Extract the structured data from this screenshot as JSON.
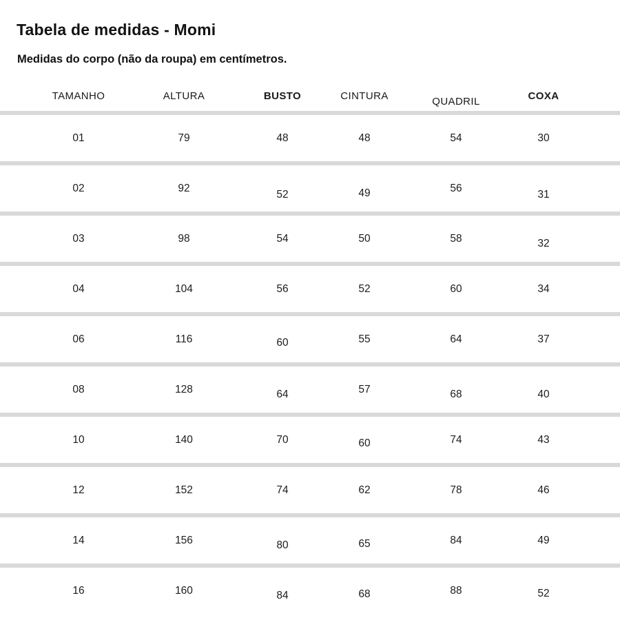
{
  "page": {
    "title": "Tabela de medidas - Momi",
    "subtitle": "Medidas do corpo (não da roupa) em centímetros."
  },
  "table": {
    "columns": [
      "TAMANHO",
      "ALTURA",
      "BUSTO",
      "CINTURA",
      "QUADRIL",
      "COXA"
    ],
    "rows": [
      [
        "01",
        "79",
        "48",
        "48",
        "54",
        "30"
      ],
      [
        "02",
        "92",
        "52",
        "49",
        "56",
        "31"
      ],
      [
        "03",
        "98",
        "54",
        "50",
        "58",
        "32"
      ],
      [
        "04",
        "104",
        "56",
        "52",
        "60",
        "34"
      ],
      [
        "06",
        "116",
        "60",
        "55",
        "64",
        "37"
      ],
      [
        "08",
        "128",
        "64",
        "57",
        "68",
        "40"
      ],
      [
        "10",
        "140",
        "70",
        "60",
        "74",
        "43"
      ],
      [
        "12",
        "152",
        "74",
        "62",
        "78",
        "46"
      ],
      [
        "14",
        "156",
        "80",
        "65",
        "84",
        "49"
      ],
      [
        "16",
        "160",
        "84",
        "68",
        "88",
        "52"
      ]
    ]
  },
  "colors": {
    "background": "#ffffff",
    "text": "#1b1b1b",
    "divider": "#d9d9d9"
  },
  "units": "cm"
}
